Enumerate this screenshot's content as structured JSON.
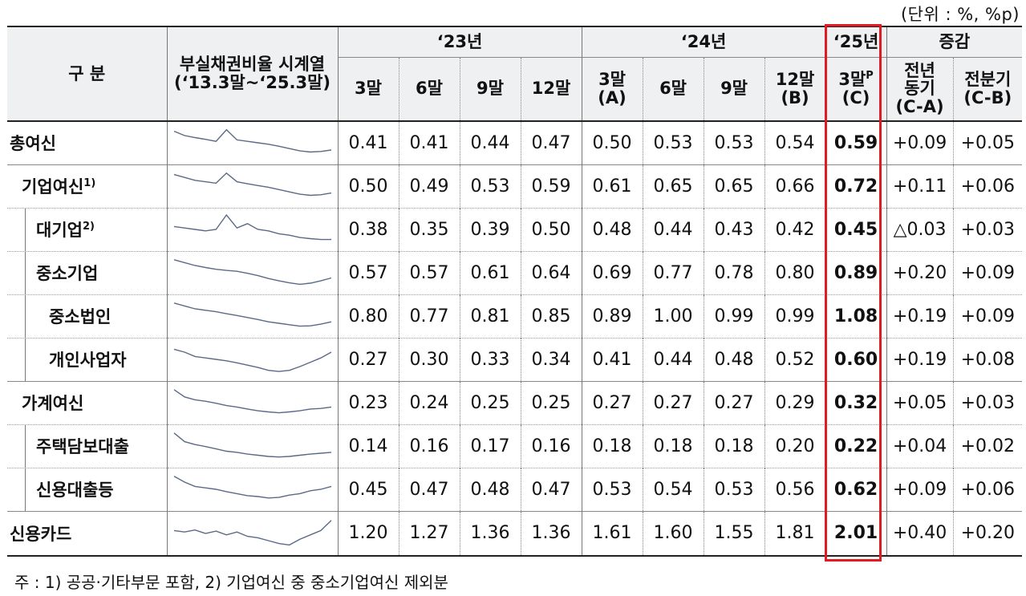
{
  "unit_note": "(단위 : %, %p)",
  "header": {
    "category": "구 분",
    "spark_title_1": "부실채권비율 시계열",
    "spark_title_2": "(‘13.3말~‘25.3말)",
    "year_23": "‘23년",
    "year_24": "‘24년",
    "year_25": "‘25년",
    "change": "증감",
    "q23": [
      "3말",
      "6말",
      "9말",
      "12말"
    ],
    "q24": [
      {
        "main": "3말",
        "sub": "(A)"
      },
      {
        "main": "6말",
        "sub": ""
      },
      {
        "main": "9말",
        "sub": ""
      },
      {
        "main": "12말",
        "sub": "(B)"
      }
    ],
    "q25_main": "3말",
    "q25_sup": "P",
    "q25_sub": "(C)",
    "yoy_1": "전년",
    "yoy_2": "동기",
    "yoy_3": "(C-A)",
    "qoq_1": "전분기",
    "qoq_2": "(C-B)"
  },
  "rows": [
    {
      "label": "총여신",
      "sup": "",
      "level": 0,
      "values": [
        "0.41",
        "0.41",
        "0.44",
        "0.47",
        "0.50",
        "0.53",
        "0.53",
        "0.54",
        "0.59",
        "+0.09",
        "+0.05"
      ],
      "spark": [
        0.9,
        0.75,
        0.68,
        0.62,
        0.55,
        0.95,
        0.6,
        0.55,
        0.5,
        0.45,
        0.38,
        0.3,
        0.22,
        0.18,
        0.2,
        0.25
      ]
    },
    {
      "label": "기업여신",
      "sup": "1)",
      "level": 1,
      "values": [
        "0.50",
        "0.49",
        "0.53",
        "0.59",
        "0.61",
        "0.65",
        "0.65",
        "0.66",
        "0.72",
        "+0.11",
        "+0.06"
      ],
      "spark": [
        0.9,
        0.8,
        0.7,
        0.65,
        0.6,
        0.95,
        0.65,
        0.58,
        0.52,
        0.46,
        0.38,
        0.3,
        0.22,
        0.18,
        0.2,
        0.26
      ]
    },
    {
      "label": "대기업",
      "sup": "2)",
      "level": 2,
      "values": [
        "0.38",
        "0.35",
        "0.39",
        "0.50",
        "0.48",
        "0.44",
        "0.43",
        "0.42",
        "0.45",
        "△0.03",
        "+0.03"
      ],
      "spark": [
        0.6,
        0.55,
        0.5,
        0.45,
        0.5,
        1.0,
        0.55,
        0.7,
        0.5,
        0.45,
        0.35,
        0.3,
        0.22,
        0.18,
        0.15,
        0.15
      ]
    },
    {
      "label": "중소기업",
      "sup": "",
      "level": 2,
      "values": [
        "0.57",
        "0.57",
        "0.61",
        "0.64",
        "0.69",
        "0.77",
        "0.78",
        "0.80",
        "0.89",
        "+0.20",
        "+0.09"
      ],
      "spark": [
        0.95,
        0.85,
        0.75,
        0.68,
        0.62,
        0.58,
        0.55,
        0.48,
        0.4,
        0.3,
        0.22,
        0.15,
        0.1,
        0.14,
        0.22,
        0.32
      ]
    },
    {
      "label": "중소법인",
      "sup": "",
      "level": 3,
      "values": [
        "0.80",
        "0.77",
        "0.81",
        "0.85",
        "0.89",
        "1.00",
        "0.99",
        "0.99",
        "1.08",
        "+0.19",
        "+0.09"
      ],
      "spark": [
        0.95,
        0.85,
        0.75,
        0.7,
        0.65,
        0.58,
        0.52,
        0.45,
        0.38,
        0.3,
        0.25,
        0.2,
        0.15,
        0.16,
        0.22,
        0.3
      ]
    },
    {
      "label": "개인사업자",
      "sup": "",
      "level": 3,
      "values": [
        "0.27",
        "0.30",
        "0.33",
        "0.34",
        "0.41",
        "0.44",
        "0.48",
        "0.52",
        "0.60",
        "+0.19",
        "+0.08"
      ],
      "spark": [
        0.85,
        0.75,
        0.6,
        0.55,
        0.5,
        0.45,
        0.38,
        0.3,
        0.22,
        0.12,
        0.08,
        0.12,
        0.25,
        0.4,
        0.55,
        0.75
      ]
    },
    {
      "label": "가계여신",
      "sup": "",
      "level": 1,
      "values": [
        "0.23",
        "0.24",
        "0.25",
        "0.25",
        "0.27",
        "0.27",
        "0.27",
        "0.29",
        "0.32",
        "+0.05",
        "+0.03"
      ],
      "spark": [
        0.95,
        0.7,
        0.6,
        0.55,
        0.48,
        0.4,
        0.35,
        0.28,
        0.22,
        0.18,
        0.15,
        0.18,
        0.22,
        0.28,
        0.3,
        0.35
      ]
    },
    {
      "label": "주택담보대출",
      "sup": "",
      "level": 2,
      "values": [
        "0.14",
        "0.16",
        "0.17",
        "0.16",
        "0.18",
        "0.18",
        "0.18",
        "0.20",
        "0.22",
        "+0.04",
        "+0.02"
      ],
      "spark": [
        0.95,
        0.65,
        0.55,
        0.48,
        0.4,
        0.32,
        0.28,
        0.22,
        0.18,
        0.14,
        0.12,
        0.14,
        0.18,
        0.22,
        0.25,
        0.28
      ]
    },
    {
      "label": "신용대출등",
      "sup": "",
      "level": 2,
      "values": [
        "0.45",
        "0.47",
        "0.48",
        "0.47",
        "0.53",
        "0.54",
        "0.53",
        "0.56",
        "0.62",
        "+0.09",
        "+0.06"
      ],
      "spark": [
        0.95,
        0.75,
        0.6,
        0.55,
        0.5,
        0.42,
        0.35,
        0.28,
        0.25,
        0.2,
        0.22,
        0.3,
        0.35,
        0.45,
        0.5,
        0.6
      ]
    },
    {
      "label": "신용카드",
      "sup": "",
      "level": 0,
      "values": [
        "1.20",
        "1.27",
        "1.36",
        "1.36",
        "1.61",
        "1.60",
        "1.55",
        "1.81",
        "2.01",
        "+0.40",
        "+0.20"
      ],
      "spark": [
        0.6,
        0.55,
        0.62,
        0.5,
        0.58,
        0.45,
        0.55,
        0.4,
        0.35,
        0.25,
        0.15,
        0.1,
        0.3,
        0.45,
        0.6,
        0.95
      ]
    }
  ],
  "footnote": "주 : 1) 공공·기타부문 포함,   2) 기업여신 중 중소기업여신 제외분",
  "colors": {
    "highlight": "#e11b22",
    "header_bg": "#eef0f2",
    "spark_line": "#5a6a86"
  }
}
